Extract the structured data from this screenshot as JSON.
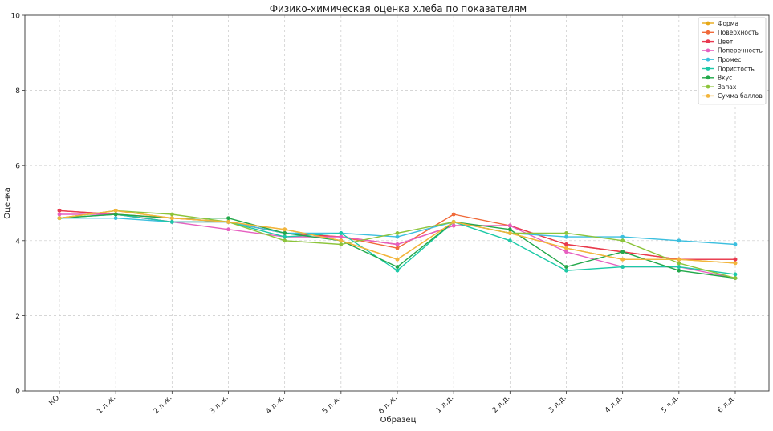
{
  "chart_data": {
    "type": "line",
    "title": "Физико-химическая оценка хлеба по показателям",
    "xlabel": "Образец",
    "ylabel": "Оценка",
    "ylim": [
      0,
      10
    ],
    "yticks": [
      0,
      2,
      4,
      6,
      8,
      10
    ],
    "grid": true,
    "legend_position": "top-right",
    "categories": [
      "КО",
      "1 л.ж.",
      "2 л.ж.",
      "3 л.ж.",
      "4 л.ж.",
      "5 л.ж.",
      "6 л.ж.",
      "1 л.д.",
      "2 л.д.",
      "3 л.д.",
      "4 л.д.",
      "5 л.д.",
      "6 л.д."
    ],
    "series": [
      {
        "name": "Форма",
        "color": "#e6a817",
        "values": [
          4.6,
          4.8,
          4.6,
          4.5,
          4.3,
          4.0,
          3.5,
          4.5,
          4.2,
          3.8,
          3.5,
          3.5,
          3.4
        ]
      },
      {
        "name": "Поверхность",
        "color": "#f06a3a",
        "values": [
          4.8,
          4.7,
          4.6,
          4.5,
          4.2,
          4.1,
          3.8,
          4.7,
          4.4,
          3.9,
          3.7,
          3.5,
          3.5
        ]
      },
      {
        "name": "Цвет",
        "color": "#e8384f",
        "values": [
          4.8,
          4.7,
          4.5,
          4.5,
          4.2,
          4.1,
          3.9,
          4.4,
          4.4,
          3.9,
          3.7,
          3.5,
          3.5
        ]
      },
      {
        "name": "Поперечность",
        "color": "#e65fc0",
        "values": [
          4.7,
          4.7,
          4.5,
          4.3,
          4.1,
          4.1,
          3.9,
          4.4,
          4.4,
          3.7,
          3.3,
          3.3,
          3.0
        ]
      },
      {
        "name": "Промес",
        "color": "#3cbfdf",
        "values": [
          4.6,
          4.6,
          4.5,
          4.5,
          4.2,
          4.2,
          4.1,
          4.5,
          4.2,
          4.1,
          4.1,
          4.0,
          3.9
        ]
      },
      {
        "name": "Пористость",
        "color": "#1cc9a7",
        "values": [
          4.6,
          4.7,
          4.5,
          4.5,
          4.1,
          4.2,
          3.2,
          4.5,
          4.0,
          3.2,
          3.3,
          3.3,
          3.1
        ]
      },
      {
        "name": "Вкус",
        "color": "#22a84a",
        "values": [
          4.6,
          4.7,
          4.6,
          4.6,
          4.2,
          4.0,
          3.3,
          4.5,
          4.3,
          3.3,
          3.7,
          3.2,
          3.0
        ]
      },
      {
        "name": "Запах",
        "color": "#8cc43a",
        "values": [
          4.6,
          4.8,
          4.7,
          4.5,
          4.0,
          3.9,
          4.2,
          4.5,
          4.2,
          4.2,
          4.0,
          3.4,
          3.0
        ]
      },
      {
        "name": "Сумма баллов",
        "color": "#f3b53c",
        "values": [
          4.6,
          4.8,
          4.6,
          4.5,
          4.3,
          4.0,
          3.5,
          4.5,
          4.2,
          3.8,
          3.5,
          3.5,
          3.4
        ]
      }
    ]
  }
}
